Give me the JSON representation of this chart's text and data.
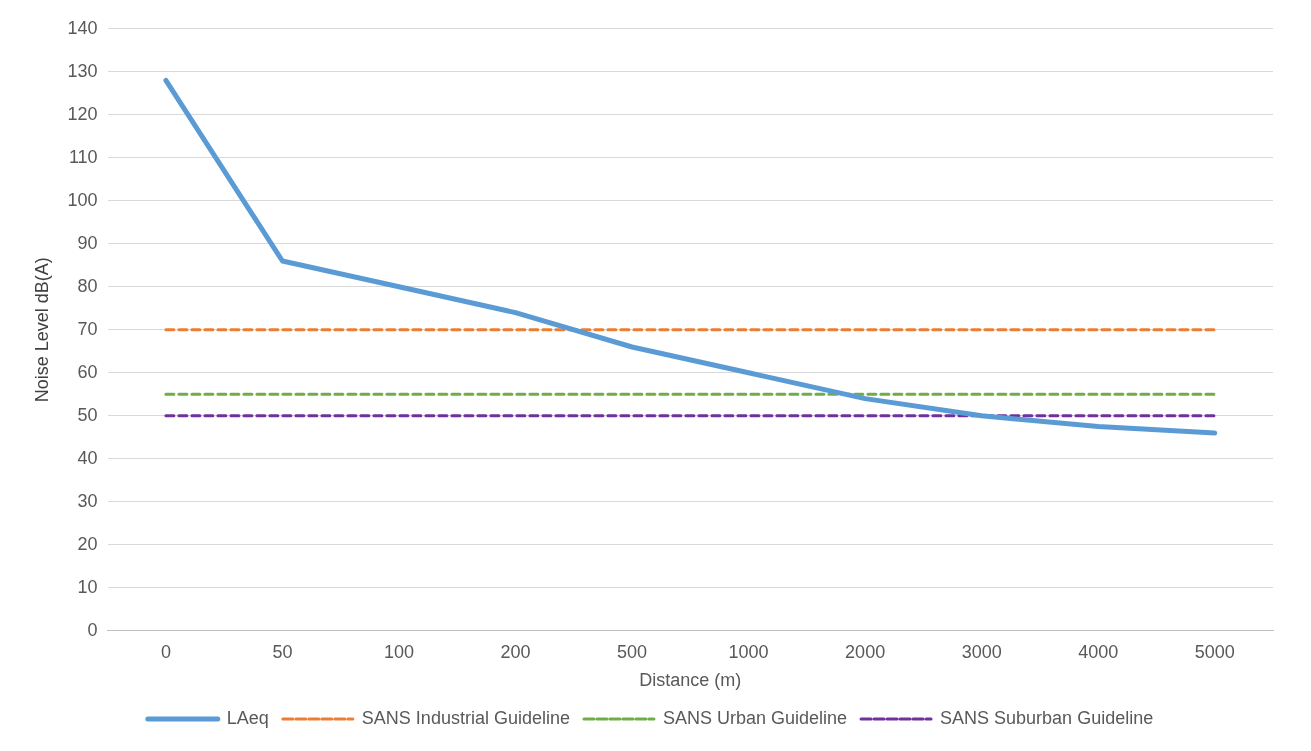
{
  "chart_data": {
    "type": "line",
    "xlabel": "Distance (m)",
    "ylabel": "Noise Level dB(A)",
    "categories": [
      "0",
      "50",
      "100",
      "200",
      "500",
      "1000",
      "2000",
      "3000",
      "4000",
      "5000"
    ],
    "series": [
      {
        "name": "LAeq",
        "color": "#5b9bd5",
        "line_style": "solid",
        "values": [
          128,
          86,
          80,
          74,
          66,
          60,
          54,
          50,
          47.5,
          46
        ]
      },
      {
        "name": "SANS Industrial Guideline",
        "color": "#ed7d31",
        "line_style": "dashed",
        "values": [
          70,
          70,
          70,
          70,
          70,
          70,
          70,
          70,
          70,
          70
        ]
      },
      {
        "name": "SANS Urban Guideline",
        "color": "#70ad47",
        "line_style": "dashed",
        "values": [
          55,
          55,
          55,
          55,
          55,
          55,
          55,
          55,
          55,
          55
        ]
      },
      {
        "name": "SANS Suburban Guideline",
        "color": "#7030a0",
        "line_style": "dashed",
        "values": [
          50,
          50,
          50,
          50,
          50,
          50,
          50,
          50,
          50,
          50
        ]
      }
    ],
    "ylim": [
      0,
      140
    ],
    "yticks": [
      0,
      10,
      20,
      30,
      40,
      50,
      60,
      70,
      80,
      90,
      100,
      110,
      120,
      130,
      140
    ],
    "grid": "y",
    "legend": "bottom",
    "marker": "none"
  }
}
